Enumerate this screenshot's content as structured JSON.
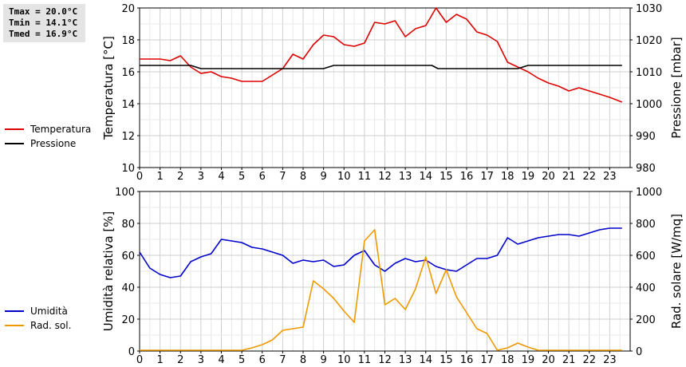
{
  "stats": {
    "tmax": "Tmax = 20.0°C",
    "tmin": "Tmin = 14.1°C",
    "tmed": "Tmed = 16.9°C"
  },
  "chart_data": [
    {
      "type": "line",
      "title": "",
      "xlabel": "",
      "ylabel": "Temperatura [°C]",
      "y2label": "Pressione [mbar]",
      "xlim": [
        0,
        24
      ],
      "ylim": [
        10,
        20
      ],
      "y2lim": [
        980,
        1030
      ],
      "x_ticks": [
        0,
        1,
        2,
        3,
        4,
        5,
        6,
        7,
        8,
        9,
        10,
        11,
        12,
        13,
        14,
        15,
        16,
        17,
        18,
        19,
        20,
        21,
        22,
        23
      ],
      "y_ticks": [
        10,
        12,
        14,
        16,
        18,
        20
      ],
      "y2_ticks": [
        980,
        990,
        1000,
        1010,
        1020,
        1030
      ],
      "grid": true,
      "legend_position": "left",
      "series": [
        {
          "name": "Temperatura",
          "axis": "left",
          "color": "#dd0000",
          "x": [
            0,
            0.5,
            1,
            1.5,
            2,
            2.5,
            3,
            3.5,
            4,
            4.5,
            5,
            5.5,
            6,
            6.5,
            7,
            7.5,
            8,
            8.5,
            9,
            9.5,
            10,
            10.5,
            11,
            11.5,
            12,
            12.5,
            13,
            13.5,
            14,
            14.5,
            15,
            15.5,
            16,
            16.5,
            17,
            17.5,
            18,
            18.5,
            19,
            19.5,
            20,
            20.5,
            21,
            21.5,
            22,
            22.5,
            23,
            23.6
          ],
          "y": [
            16.8,
            16.8,
            16.8,
            16.7,
            17.0,
            16.3,
            15.9,
            16.0,
            15.7,
            15.6,
            15.4,
            15.4,
            15.4,
            15.8,
            16.2,
            17.1,
            16.8,
            17.7,
            18.3,
            18.2,
            17.7,
            17.6,
            17.8,
            19.1,
            19.0,
            19.2,
            18.2,
            18.7,
            18.9,
            20.0,
            19.1,
            19.6,
            19.3,
            18.5,
            18.3,
            17.9,
            16.6,
            16.3,
            16.0,
            15.6,
            15.3,
            15.1,
            14.8,
            15.0,
            14.8,
            14.6,
            14.4,
            14.1
          ]
        },
        {
          "name": "Pressione",
          "axis": "right",
          "color": "#000000",
          "x": [
            0,
            2.5,
            3,
            9,
            9.5,
            14.3,
            14.6,
            18.5,
            19,
            23.6
          ],
          "y": [
            1012,
            1012,
            1011,
            1011,
            1012,
            1012,
            1011,
            1011,
            1012,
            1012
          ]
        }
      ]
    },
    {
      "type": "line",
      "title": "",
      "xlabel": "",
      "ylabel": "Umidità relativa [%]",
      "y2label": "Rad. solare [W/mq]",
      "xlim": [
        0,
        24
      ],
      "ylim": [
        0,
        100
      ],
      "y2lim": [
        0,
        1000
      ],
      "x_ticks": [
        0,
        1,
        2,
        3,
        4,
        5,
        6,
        7,
        8,
        9,
        10,
        11,
        12,
        13,
        14,
        15,
        16,
        17,
        18,
        19,
        20,
        21,
        22,
        23
      ],
      "y_ticks": [
        0,
        20,
        40,
        60,
        80,
        100
      ],
      "y2_ticks": [
        0,
        200,
        400,
        600,
        800,
        1000
      ],
      "grid": true,
      "legend_position": "left",
      "series": [
        {
          "name": "Umidità",
          "axis": "left",
          "color": "#0000cc",
          "x": [
            0,
            0.5,
            1,
            1.5,
            2,
            2.5,
            3,
            3.5,
            4,
            4.5,
            5,
            5.5,
            6,
            6.5,
            7,
            7.5,
            8,
            8.5,
            9,
            9.5,
            10,
            10.5,
            11,
            11.5,
            12,
            12.5,
            13,
            13.5,
            14,
            14.5,
            15,
            15.5,
            16,
            16.5,
            17,
            17.5,
            18,
            18.5,
            19,
            19.5,
            20,
            20.5,
            21,
            21.5,
            22,
            22.5,
            23,
            23.6
          ],
          "y": [
            62,
            52,
            48,
            46,
            47,
            56,
            59,
            61,
            70,
            69,
            68,
            65,
            64,
            62,
            60,
            55,
            57,
            56,
            57,
            53,
            54,
            60,
            63,
            54,
            50,
            55,
            58,
            56,
            57,
            53,
            51,
            50,
            54,
            58,
            58,
            60,
            71,
            67,
            69,
            71,
            72,
            73,
            73,
            72,
            74,
            76,
            77,
            77
          ]
        },
        {
          "name": "Rad. sol.",
          "axis": "right",
          "color": "#ee9900",
          "x": [
            0,
            0.5,
            1,
            1.5,
            2,
            2.5,
            3,
            3.5,
            4,
            4.5,
            5,
            5.5,
            6,
            6.5,
            7,
            7.5,
            8,
            8.5,
            9,
            9.5,
            10,
            10.5,
            11,
            11.5,
            12,
            12.5,
            13,
            13.5,
            14,
            14.5,
            15,
            15.5,
            16,
            16.5,
            17,
            17.5,
            18,
            18.5,
            19,
            19.5,
            20,
            20.5,
            21,
            21.5,
            22,
            22.5,
            23,
            23.6
          ],
          "y": [
            5,
            5,
            5,
            5,
            5,
            5,
            5,
            5,
            5,
            5,
            5,
            20,
            40,
            70,
            130,
            140,
            150,
            440,
            390,
            330,
            250,
            180,
            690,
            760,
            290,
            330,
            260,
            390,
            590,
            360,
            510,
            340,
            240,
            140,
            110,
            5,
            20,
            50,
            25,
            5,
            5,
            5,
            5,
            5,
            5,
            5,
            5,
            5
          ]
        }
      ]
    }
  ]
}
